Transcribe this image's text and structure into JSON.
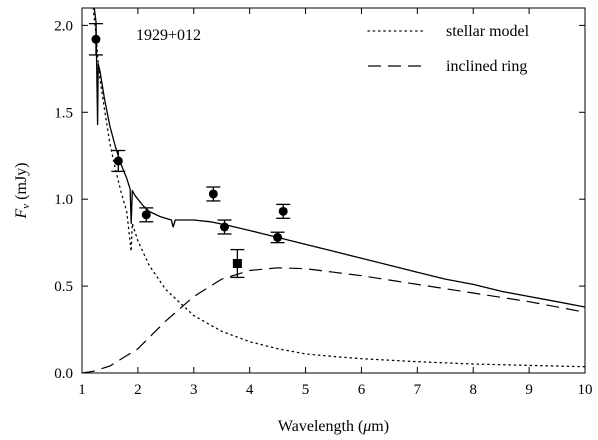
{
  "chart_data": {
    "type": "scatter",
    "annotation": "1929+012",
    "xlabel_prefix": "Wavelength (",
    "xlabel_mu": "μ",
    "xlabel_suffix": "m)",
    "ylabel_main": "F",
    "ylabel_sub": "ν",
    "ylabel_unit": " (mJy)",
    "xlim": [
      1,
      10
    ],
    "ylim": [
      0,
      2.1
    ],
    "xticks": [
      1,
      2,
      3,
      4,
      5,
      6,
      7,
      8,
      9,
      10
    ],
    "yticks": [
      0.0,
      0.5,
      1.0,
      1.5,
      2.0
    ],
    "ytick_labels": [
      "0.0",
      "0.5",
      "1.0",
      "1.5",
      "2.0"
    ],
    "legend": [
      {
        "label": "stellar model",
        "style": "dotted"
      },
      {
        "label": "inclined ring",
        "style": "dashed"
      }
    ],
    "legend_position": "top-right",
    "series": [
      {
        "role": "total-model",
        "style": "solid",
        "points": [
          [
            1.2,
            2.15
          ],
          [
            1.25,
            2.02
          ],
          [
            1.28,
            1.43
          ],
          [
            1.29,
            1.78
          ],
          [
            1.32,
            1.74
          ],
          [
            1.4,
            1.58
          ],
          [
            1.5,
            1.42
          ],
          [
            1.6,
            1.3
          ],
          [
            1.7,
            1.2
          ],
          [
            1.8,
            1.12
          ],
          [
            1.86,
            1.06
          ],
          [
            1.88,
            0.86
          ],
          [
            1.9,
            1.05
          ],
          [
            1.95,
            1.02
          ],
          [
            2.0,
            1.0
          ],
          [
            2.1,
            0.96
          ],
          [
            2.2,
            0.93
          ],
          [
            2.4,
            0.9
          ],
          [
            2.6,
            0.88
          ],
          [
            2.63,
            0.84
          ],
          [
            2.67,
            0.88
          ],
          [
            3.0,
            0.88
          ],
          [
            3.3,
            0.87
          ],
          [
            3.6,
            0.85
          ],
          [
            4.0,
            0.82
          ],
          [
            4.5,
            0.78
          ],
          [
            5.0,
            0.74
          ],
          [
            5.5,
            0.7
          ],
          [
            6.0,
            0.66
          ],
          [
            6.5,
            0.62
          ],
          [
            7.0,
            0.58
          ],
          [
            7.5,
            0.54
          ],
          [
            8.0,
            0.51
          ],
          [
            8.5,
            0.47
          ],
          [
            9.0,
            0.44
          ],
          [
            9.5,
            0.41
          ],
          [
            10.0,
            0.38
          ]
        ]
      },
      {
        "role": "stellar-model",
        "style": "dotted",
        "points": [
          [
            1.2,
            2.1
          ],
          [
            1.25,
            1.95
          ],
          [
            1.3,
            1.74
          ],
          [
            1.4,
            1.52
          ],
          [
            1.5,
            1.32
          ],
          [
            1.6,
            1.17
          ],
          [
            1.7,
            1.04
          ],
          [
            1.8,
            0.93
          ],
          [
            1.88,
            0.7
          ],
          [
            1.9,
            0.86
          ],
          [
            2.0,
            0.76
          ],
          [
            2.2,
            0.62
          ],
          [
            2.5,
            0.48
          ],
          [
            3.0,
            0.33
          ],
          [
            3.5,
            0.24
          ],
          [
            4.0,
            0.18
          ],
          [
            4.5,
            0.14
          ],
          [
            5.0,
            0.11
          ],
          [
            5.5,
            0.095
          ],
          [
            6.0,
            0.082
          ],
          [
            7.0,
            0.065
          ],
          [
            8.0,
            0.052
          ],
          [
            9.0,
            0.044
          ],
          [
            10.0,
            0.036
          ]
        ]
      },
      {
        "role": "inclined-ring",
        "style": "dashed",
        "points": [
          [
            1.0,
            0.0
          ],
          [
            1.2,
            0.01
          ],
          [
            1.5,
            0.04
          ],
          [
            2.0,
            0.14
          ],
          [
            2.5,
            0.3
          ],
          [
            3.0,
            0.44
          ],
          [
            3.5,
            0.54
          ],
          [
            4.0,
            0.59
          ],
          [
            4.5,
            0.605
          ],
          [
            5.0,
            0.6
          ],
          [
            5.5,
            0.58
          ],
          [
            6.0,
            0.56
          ],
          [
            7.0,
            0.51
          ],
          [
            8.0,
            0.46
          ],
          [
            9.0,
            0.41
          ],
          [
            10.0,
            0.35
          ]
        ]
      },
      {
        "role": "photometry",
        "marker": "circle",
        "points": [
          {
            "x": 1.25,
            "y": 1.92,
            "err": 0.09
          },
          {
            "x": 1.65,
            "y": 1.22,
            "err": 0.06
          },
          {
            "x": 2.15,
            "y": 0.91,
            "err": 0.04
          },
          {
            "x": 3.35,
            "y": 1.03,
            "err": 0.04
          },
          {
            "x": 3.55,
            "y": 0.84,
            "err": 0.04
          },
          {
            "x": 4.5,
            "y": 0.78,
            "err": 0.03
          },
          {
            "x": 4.6,
            "y": 0.93,
            "err": 0.04
          }
        ]
      },
      {
        "role": "photometry-square",
        "marker": "square",
        "points": [
          {
            "x": 3.78,
            "y": 0.63,
            "err": 0.08
          }
        ]
      }
    ]
  }
}
